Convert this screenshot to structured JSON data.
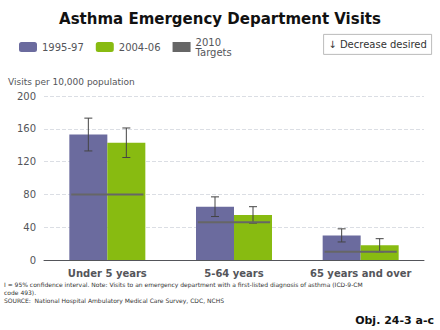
{
  "chart_data": {
    "type": "bar",
    "title": "Asthma Emergency Department Visits",
    "ylabel": "Visits per 10,000 population",
    "categories": [
      "Under 5 years",
      "5-64 years",
      "65 years and over"
    ],
    "series": [
      {
        "name": "1995-97",
        "color": "#6b6b9e",
        "values": [
          153,
          65,
          30
        ],
        "errors": [
          20,
          12,
          8
        ]
      },
      {
        "name": "2004-06",
        "color": "#88bb11",
        "values": [
          143,
          55,
          18
        ],
        "errors": [
          18,
          10,
          8
        ]
      },
      {
        "name": "2010\nTargets",
        "type": "scatter",
        "marker": "hline",
        "color": "#666666",
        "values": [
          80,
          46,
          10
        ]
      }
    ],
    "ylim": [
      0,
      200
    ],
    "yticks": [
      0,
      40,
      80,
      120,
      160,
      200
    ],
    "grid": true,
    "legend": "top",
    "annotations": [
      "↓ Decrease desired",
      "I = 95% confidence interval. Note: Visits to an emergency department with a first-listed diagnosis of asthma (ICD-9-CM\ncode 493).\nSOURCE:  National Hospital Ambulatory Medical Care Survey, CDC, NCHS",
      "Obj. 24-3 a-c"
    ]
  }
}
